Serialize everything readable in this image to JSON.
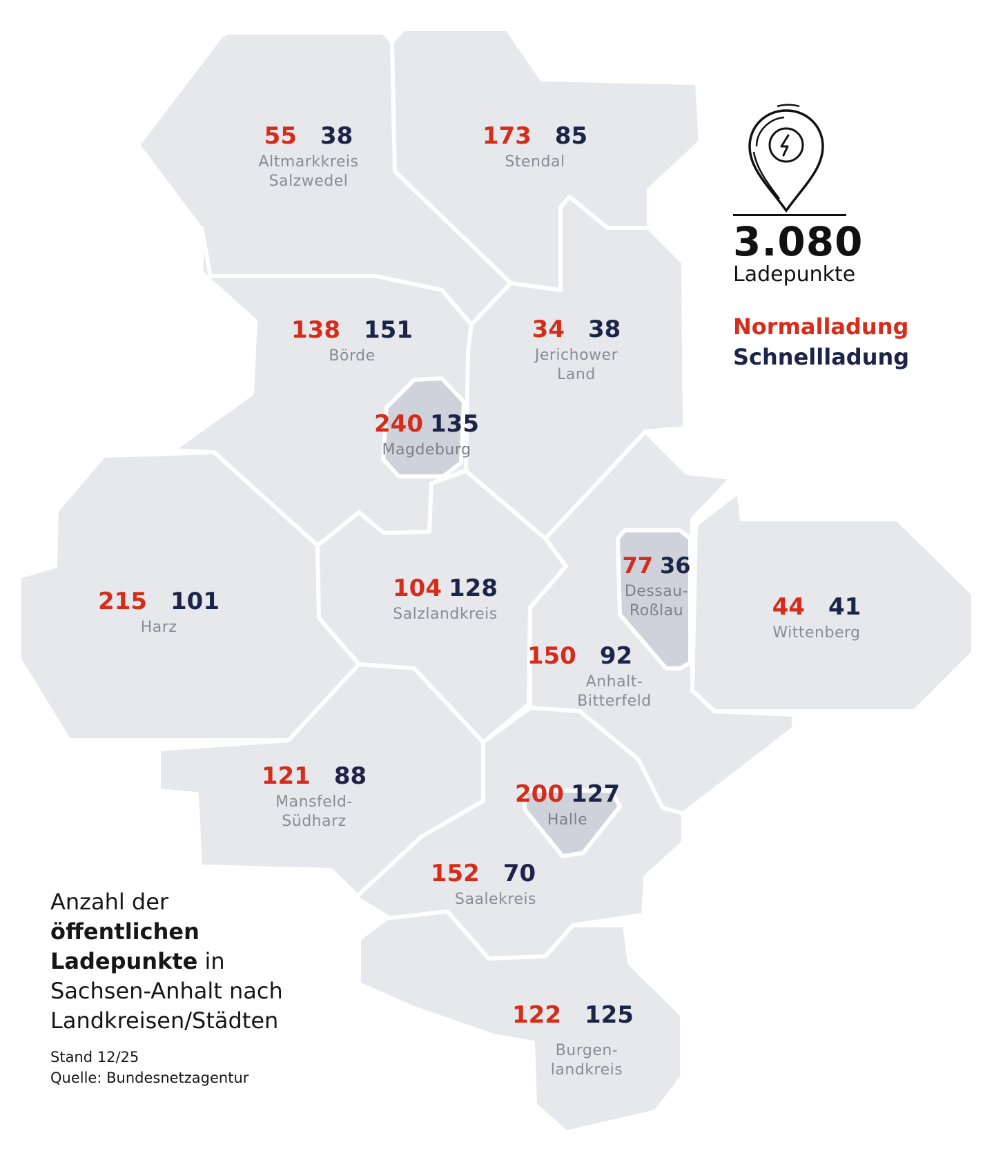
{
  "total": {
    "value": "3.080",
    "label": "Ladepunkte"
  },
  "legend": {
    "normal": {
      "label": "Normalladung",
      "color": "#d62c1a"
    },
    "fast": {
      "label": "Schnellladung",
      "color": "#1c2448"
    }
  },
  "description": {
    "line1": "Anzahl der",
    "line2_bold": "öffentlichen",
    "line3_bold": "Ladepunkte",
    "line3_rest": " in",
    "line4": "Sachsen-Anhalt nach",
    "line5": "Landkreisen/Städten",
    "stand": "Stand 12/25",
    "quelle": "Quelle: Bundesnetzagentur"
  },
  "icons": {
    "pin": "charging-pin-icon"
  },
  "regions": [
    {
      "id": "altmarkkreis-salzwedel",
      "name1": "Altmarkkreis",
      "name2": "Salzwedel",
      "normal": 55,
      "fast": 38
    },
    {
      "id": "stendal",
      "name1": "Stendal",
      "name2": "",
      "normal": 173,
      "fast": 85
    },
    {
      "id": "boerde",
      "name1": "Börde",
      "name2": "",
      "normal": 138,
      "fast": 151
    },
    {
      "id": "jerichower-land",
      "name1": "Jerichower",
      "name2": "Land",
      "normal": 34,
      "fast": 38
    },
    {
      "id": "magdeburg",
      "name1": "Magdeburg",
      "name2": "",
      "normal": 240,
      "fast": 135
    },
    {
      "id": "harz",
      "name1": "Harz",
      "name2": "",
      "normal": 215,
      "fast": 101
    },
    {
      "id": "salzlandkreis",
      "name1": "Salzlandkreis",
      "name2": "",
      "normal": 104,
      "fast": 128
    },
    {
      "id": "dessau-rosslau",
      "name1": "Dessau-",
      "name2": "Roßlau",
      "normal": 77,
      "fast": 36
    },
    {
      "id": "wittenberg",
      "name1": "Wittenberg",
      "name2": "",
      "normal": 44,
      "fast": 41
    },
    {
      "id": "anhalt-bitterfeld",
      "name1": "Anhalt-",
      "name2": "Bitterfeld",
      "normal": 150,
      "fast": 92
    },
    {
      "id": "mansfeld-suedharz",
      "name1": "Mansfeld-",
      "name2": "Südharz",
      "normal": 121,
      "fast": 88
    },
    {
      "id": "halle",
      "name1": "Halle",
      "name2": "",
      "normal": 200,
      "fast": 127
    },
    {
      "id": "saalekreis",
      "name1": "Saalekreis",
      "name2": "",
      "normal": 152,
      "fast": 70
    },
    {
      "id": "burgenlandkreis",
      "name1": "Burgen-",
      "name2": "landkreis",
      "normal": 122,
      "fast": 125
    }
  ]
}
